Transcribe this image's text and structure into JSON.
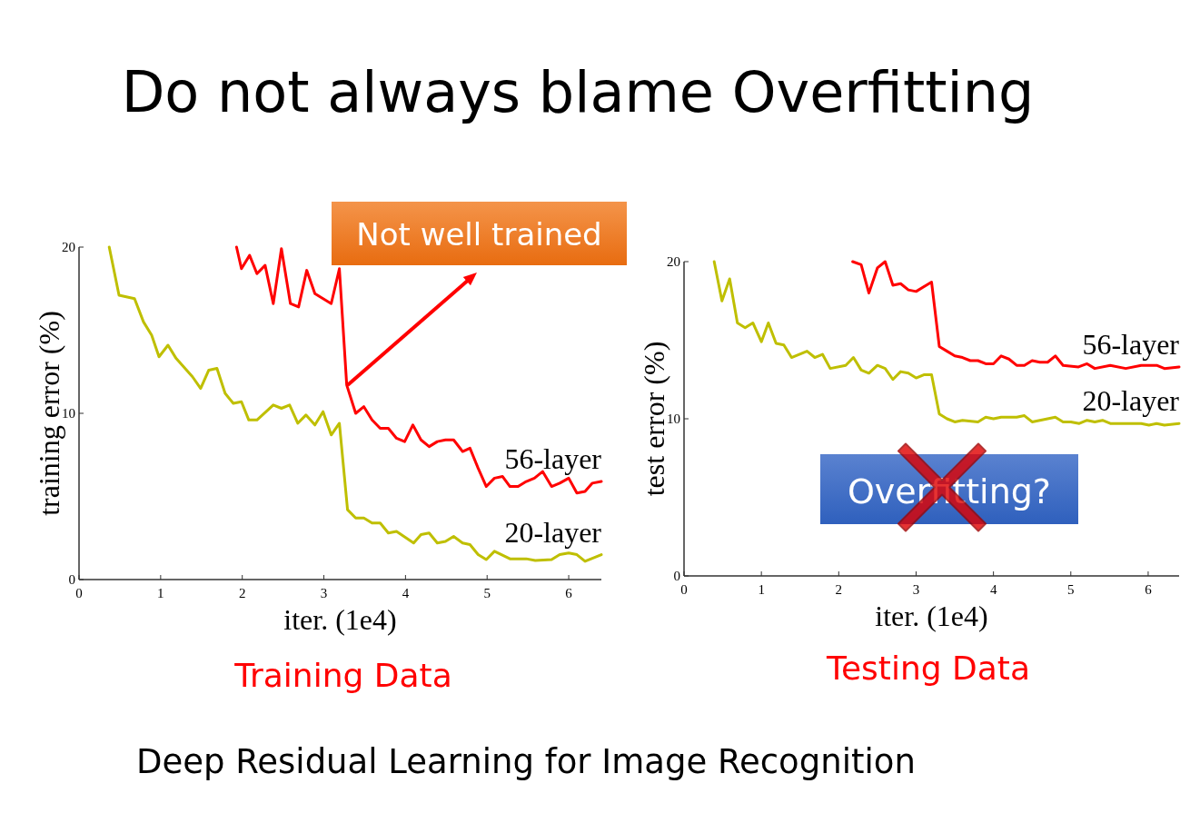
{
  "chart_data": [
    {
      "type": "line",
      "title": "Do not always blame Overfitting",
      "xlabel": "iter. (1e4)",
      "ylabel": "training error (%)",
      "xlim": [
        0,
        6.4
      ],
      "ylim": [
        0,
        20
      ],
      "xticks": [
        0,
        1,
        2,
        3,
        4,
        5,
        6
      ],
      "yticks": [
        0,
        10,
        20
      ],
      "grid": false,
      "marker": "none",
      "line_style": "solid",
      "annotations": [
        {
          "text": "Not well trained",
          "x": 3.29,
          "y": 11.7
        },
        "Training Data",
        "Deep Residual Learning for Image Recognition"
      ],
      "series": [
        {
          "name": "56-layer",
          "color": "#ff0000",
          "x": [
            1.93,
            1.99,
            2.09,
            2.18,
            2.28,
            2.38,
            2.48,
            2.59,
            2.69,
            2.79,
            2.89,
            2.99,
            3.09,
            3.19,
            3.28,
            3.39,
            3.49,
            3.59,
            3.69,
            3.79,
            3.89,
            3.99,
            4.09,
            4.19,
            4.29,
            4.39,
            4.49,
            4.59,
            4.7,
            4.79,
            4.89,
            4.99,
            5.09,
            5.19,
            5.28,
            5.38,
            5.48,
            5.58,
            5.68,
            5.79,
            5.89,
            6.0,
            6.1,
            6.2,
            6.29,
            6.4
          ],
          "values": [
            20,
            18.7,
            19.5,
            18.4,
            18.9,
            16.6,
            19.9,
            16.6,
            16.4,
            18.6,
            17.2,
            16.9,
            16.6,
            18.7,
            11.7,
            10.0,
            10.4,
            9.6,
            9.1,
            9.1,
            8.5,
            8.3,
            9.3,
            8.4,
            8.0,
            8.3,
            8.4,
            8.4,
            7.7,
            7.9,
            6.7,
            5.6,
            6.1,
            6.2,
            5.6,
            5.6,
            5.9,
            6.1,
            6.5,
            5.6,
            5.8,
            6.1,
            5.2,
            5.3,
            5.8,
            5.9
          ]
        },
        {
          "name": "20-layer",
          "color": "#bfbf00",
          "x": [
            0.37,
            0.49,
            0.68,
            0.79,
            0.89,
            0.98,
            1.09,
            1.19,
            1.39,
            1.49,
            1.59,
            1.69,
            1.79,
            1.89,
            1.99,
            2.08,
            2.18,
            2.38,
            2.48,
            2.58,
            2.68,
            2.78,
            2.89,
            2.99,
            3.09,
            3.19,
            3.29,
            3.39,
            3.49,
            3.59,
            3.69,
            3.79,
            3.89,
            4.1,
            4.19,
            4.29,
            4.39,
            4.49,
            4.59,
            4.7,
            4.79,
            4.89,
            4.99,
            5.09,
            5.28,
            5.48,
            5.59,
            5.79,
            5.89,
            6.0,
            6.1,
            6.2,
            6.4
          ],
          "values": [
            20,
            17.1,
            16.9,
            15.5,
            14.7,
            13.4,
            14.1,
            13.3,
            12.2,
            11.5,
            12.6,
            12.7,
            11.2,
            10.6,
            10.7,
            9.6,
            9.6,
            10.5,
            10.3,
            10.5,
            9.4,
            9.9,
            9.3,
            10.1,
            8.7,
            9.4,
            4.2,
            3.7,
            3.7,
            3.4,
            3.4,
            2.8,
            2.9,
            2.2,
            2.7,
            2.8,
            2.2,
            2.3,
            2.6,
            2.2,
            2.1,
            1.5,
            1.2,
            1.7,
            1.25,
            1.25,
            1.15,
            1.2,
            1.5,
            1.6,
            1.5,
            1.1,
            1.5
          ]
        }
      ]
    },
    {
      "type": "line",
      "xlabel": "iter. (1e4)",
      "ylabel": "test error (%)",
      "xlim": [
        0,
        6.4
      ],
      "ylim": [
        0,
        20
      ],
      "xticks": [
        0,
        1,
        2,
        3,
        4,
        5,
        6
      ],
      "yticks": [
        0,
        10,
        20
      ],
      "grid": false,
      "marker": "none",
      "line_style": "solid",
      "annotations": [
        "Overfitting?",
        "Testing Data"
      ],
      "series": [
        {
          "name": "56-layer",
          "color": "#ff0000",
          "x": [
            2.18,
            2.29,
            2.39,
            2.5,
            2.6,
            2.7,
            2.8,
            2.9,
            3.0,
            3.2,
            3.3,
            3.4,
            3.5,
            3.6,
            3.7,
            3.8,
            3.9,
            4.0,
            4.1,
            4.2,
            4.3,
            4.4,
            4.5,
            4.6,
            4.7,
            4.8,
            4.9,
            5.1,
            5.21,
            5.31,
            5.51,
            5.71,
            5.91,
            6.11,
            6.21,
            6.4
          ],
          "values": [
            20,
            19.8,
            18.0,
            19.6,
            20,
            18.5,
            18.6,
            18.2,
            18.1,
            18.7,
            14.6,
            14.3,
            14.0,
            13.9,
            13.7,
            13.7,
            13.5,
            13.5,
            14.0,
            13.8,
            13.4,
            13.4,
            13.7,
            13.6,
            13.6,
            14.0,
            13.4,
            13.3,
            13.5,
            13.2,
            13.4,
            13.2,
            13.4,
            13.4,
            13.2,
            13.3
          ]
        },
        {
          "name": "20-layer",
          "color": "#bfbf00",
          "x": [
            0.39,
            0.49,
            0.59,
            0.69,
            0.79,
            0.89,
            1.0,
            1.09,
            1.19,
            1.29,
            1.39,
            1.49,
            1.59,
            1.69,
            1.79,
            1.89,
            2.09,
            2.19,
            2.29,
            2.39,
            2.5,
            2.6,
            2.7,
            2.8,
            2.9,
            3.0,
            3.1,
            3.2,
            3.3,
            3.4,
            3.5,
            3.6,
            3.8,
            3.9,
            4.0,
            4.1,
            4.3,
            4.4,
            4.5,
            4.7,
            4.8,
            4.9,
            5.0,
            5.11,
            5.21,
            5.31,
            5.41,
            5.51,
            5.71,
            5.91,
            6.01,
            6.11,
            6.21,
            6.4
          ],
          "values": [
            20,
            17.5,
            18.9,
            16.1,
            15.8,
            16.1,
            14.9,
            16.1,
            14.8,
            14.7,
            13.9,
            14.1,
            14.3,
            13.9,
            14.1,
            13.2,
            13.4,
            13.9,
            13.1,
            12.9,
            13.4,
            13.2,
            12.5,
            13.0,
            12.9,
            12.6,
            12.8,
            12.8,
            10.3,
            10.0,
            9.8,
            9.9,
            9.8,
            10.1,
            10.0,
            10.1,
            10.1,
            10.2,
            9.8,
            10.0,
            10.1,
            9.8,
            9.8,
            9.7,
            9.9,
            9.8,
            9.9,
            9.7,
            9.7,
            9.7,
            9.6,
            9.7,
            9.6,
            9.7
          ]
        }
      ]
    }
  ]
}
